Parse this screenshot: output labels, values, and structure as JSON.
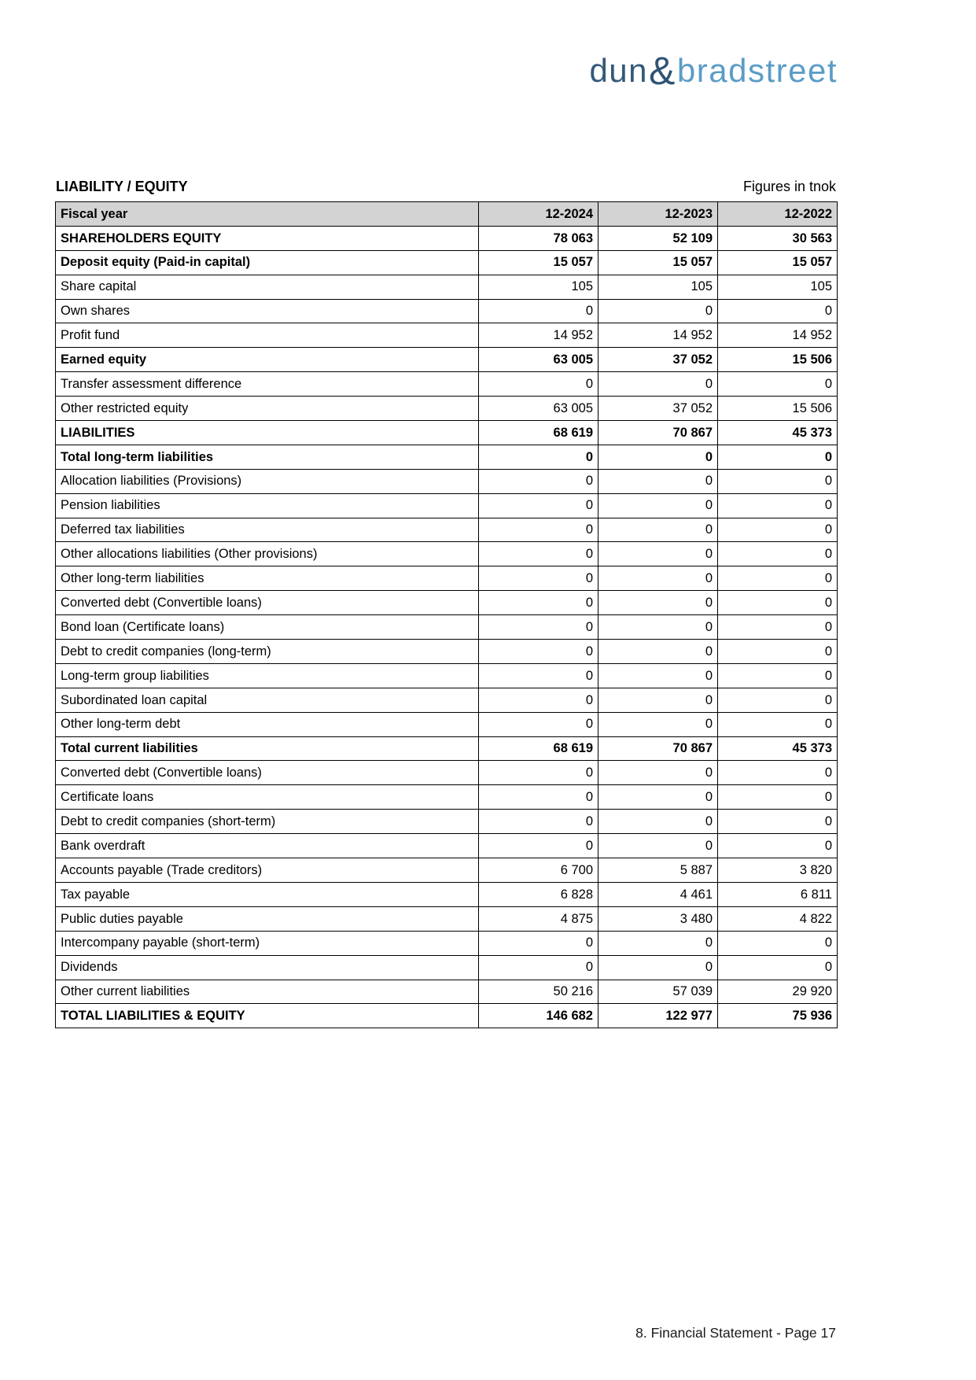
{
  "logo": {
    "dun": "dun",
    "ampersand": "&",
    "bradstreet": "bradstreet",
    "dun_color": "#35597a",
    "bradstreet_color": "#5b9cc6"
  },
  "header": {
    "section_title": "LIABILITY / EQUITY",
    "units_note": "Figures in tnok"
  },
  "table": {
    "header_background": "#d3d3d3",
    "header": {
      "label": "Fiscal year",
      "columns": [
        "12-2024",
        "12-2023",
        "12-2022"
      ]
    },
    "rows": [
      {
        "label": "SHAREHOLDERS EQUITY",
        "values": [
          "78 063",
          "52 109",
          "30 563"
        ],
        "bold": true
      },
      {
        "label": "Deposit equity (Paid-in capital)",
        "values": [
          "15 057",
          "15 057",
          "15 057"
        ],
        "bold": true
      },
      {
        "label": "Share capital",
        "values": [
          "105",
          "105",
          "105"
        ],
        "bold": false
      },
      {
        "label": "Own shares",
        "values": [
          "0",
          "0",
          "0"
        ],
        "bold": false
      },
      {
        "label": "Profit fund",
        "values": [
          "14 952",
          "14 952",
          "14 952"
        ],
        "bold": false
      },
      {
        "label": "Earned equity",
        "values": [
          "63 005",
          "37 052",
          "15 506"
        ],
        "bold": true
      },
      {
        "label": "Transfer assessment difference",
        "values": [
          "0",
          "0",
          "0"
        ],
        "bold": false
      },
      {
        "label": "Other restricted equity",
        "values": [
          "63 005",
          "37 052",
          "15 506"
        ],
        "bold": false
      },
      {
        "label": "LIABILITIES",
        "values": [
          "68 619",
          "70 867",
          "45 373"
        ],
        "bold": true
      },
      {
        "label": "Total long-term liabilities",
        "values": [
          "0",
          "0",
          "0"
        ],
        "bold": true
      },
      {
        "label": "Allocation liabilities (Provisions)",
        "values": [
          "0",
          "0",
          "0"
        ],
        "bold": false
      },
      {
        "label": "Pension liabilities",
        "values": [
          "0",
          "0",
          "0"
        ],
        "bold": false
      },
      {
        "label": "Deferred tax liabilities",
        "values": [
          "0",
          "0",
          "0"
        ],
        "bold": false
      },
      {
        "label": "Other allocations liabilities (Other provisions)",
        "values": [
          "0",
          "0",
          "0"
        ],
        "bold": false
      },
      {
        "label": "Other long-term liabilities",
        "values": [
          "0",
          "0",
          "0"
        ],
        "bold": false
      },
      {
        "label": "Converted debt (Convertible loans)",
        "values": [
          "0",
          "0",
          "0"
        ],
        "bold": false
      },
      {
        "label": "Bond loan (Certificate loans)",
        "values": [
          "0",
          "0",
          "0"
        ],
        "bold": false
      },
      {
        "label": "Debt to credit companies (long-term)",
        "values": [
          "0",
          "0",
          "0"
        ],
        "bold": false
      },
      {
        "label": "Long-term group liabilities",
        "values": [
          "0",
          "0",
          "0"
        ],
        "bold": false
      },
      {
        "label": "Subordinated loan capital",
        "values": [
          "0",
          "0",
          "0"
        ],
        "bold": false
      },
      {
        "label": "Other long-term debt",
        "values": [
          "0",
          "0",
          "0"
        ],
        "bold": false
      },
      {
        "label": "Total current liabilities",
        "values": [
          "68 619",
          "70 867",
          "45 373"
        ],
        "bold": true
      },
      {
        "label": "Converted debt (Convertible loans)",
        "values": [
          "0",
          "0",
          "0"
        ],
        "bold": false
      },
      {
        "label": "Certificate loans",
        "values": [
          "0",
          "0",
          "0"
        ],
        "bold": false
      },
      {
        "label": "Debt to credit companies (short-term)",
        "values": [
          "0",
          "0",
          "0"
        ],
        "bold": false
      },
      {
        "label": "Bank overdraft",
        "values": [
          "0",
          "0",
          "0"
        ],
        "bold": false
      },
      {
        "label": "Accounts payable (Trade creditors)",
        "values": [
          "6 700",
          "5 887",
          "3 820"
        ],
        "bold": false
      },
      {
        "label": "Tax payable",
        "values": [
          "6 828",
          "4 461",
          "6 811"
        ],
        "bold": false
      },
      {
        "label": "Public duties payable",
        "values": [
          "4 875",
          "3 480",
          "4 822"
        ],
        "bold": false
      },
      {
        "label": "Intercompany payable (short-term)",
        "values": [
          "0",
          "0",
          "0"
        ],
        "bold": false
      },
      {
        "label": "Dividends",
        "values": [
          "0",
          "0",
          "0"
        ],
        "bold": false
      },
      {
        "label": "Other current liabilities",
        "values": [
          "50 216",
          "57 039",
          "29 920"
        ],
        "bold": false
      },
      {
        "label": "TOTAL LIABILITIES & EQUITY",
        "values": [
          "146 682",
          "122 977",
          "75 936"
        ],
        "bold": true
      }
    ]
  },
  "footer": {
    "text": "8. Financial Statement - Page 17"
  }
}
